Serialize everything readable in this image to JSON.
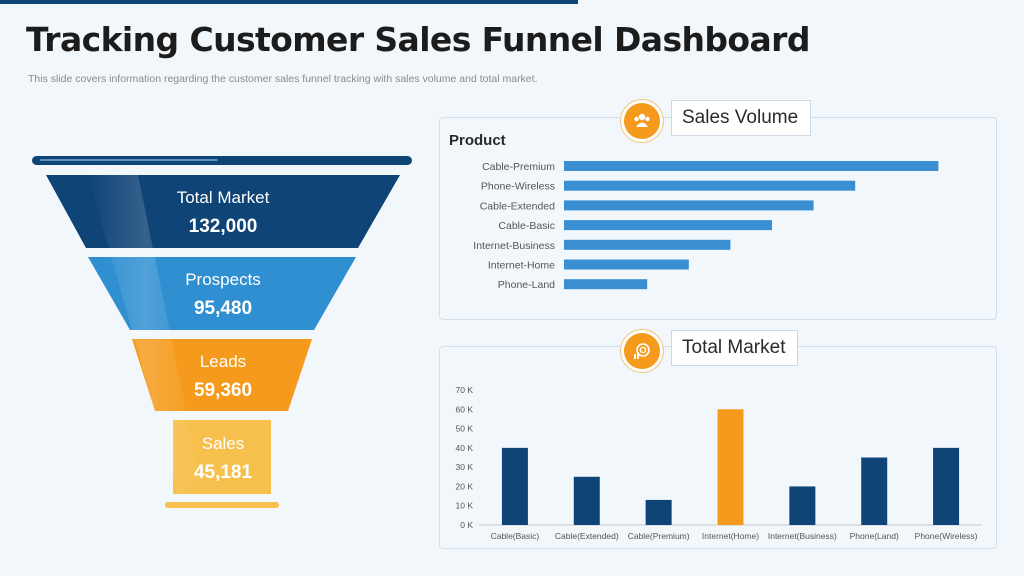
{
  "header": {
    "title": "Tracking Customer Sales Funnel Dashboard",
    "subtitle": "This slide covers information regarding the customer sales funnel tracking with sales volume  and total market."
  },
  "funnel": {
    "stages": [
      {
        "name": "Total Market",
        "value": "132,000",
        "color": "#0f4477"
      },
      {
        "name": "Prospects",
        "value": "95,480",
        "color": "#2f8fd0"
      },
      {
        "name": "Leads",
        "value": "59,360",
        "color": "#f59a1c"
      },
      {
        "name": "Sales",
        "value": "45,181",
        "color": "#f7c04d"
      }
    ]
  },
  "sales_volume": {
    "tag": "Sales Volume",
    "icon": "people-icon"
  },
  "total_market": {
    "tag": "Total Market",
    "icon": "target-chart-icon"
  },
  "chart_data": [
    {
      "type": "bar",
      "orientation": "horizontal",
      "title": "",
      "ylabel": "Product",
      "categories": [
        "Cable-Premium",
        "Phone-Wireless",
        "Cable-Extended",
        "Cable-Basic",
        "Internet-Business",
        "Internet-Home",
        "Phone-Land"
      ],
      "values": [
        90,
        70,
        60,
        50,
        40,
        30,
        20
      ],
      "xlim": [
        0,
        100
      ],
      "color": "#3a8fd2",
      "grid": false,
      "axis_labels_visible": false
    },
    {
      "type": "bar",
      "title": "",
      "categories": [
        "Cable(Basic)",
        "Cable(Extended)",
        "Cable(Premium)",
        "Internet(Home)",
        "Internet(Business)",
        "Phone(Land)",
        "Phone(Wireless)"
      ],
      "values": [
        40000,
        25000,
        13000,
        60000,
        20000,
        35000,
        40000
      ],
      "colors": [
        "#0f4477",
        "#0f4477",
        "#0f4477",
        "#f59a1c",
        "#0f4477",
        "#0f4477",
        "#0f4477"
      ],
      "ylim": [
        0,
        70000
      ],
      "yticks": [
        "0 K",
        "10 K",
        "20 K",
        "30 K",
        "40 K",
        "50 K",
        "60 K",
        "70 K"
      ],
      "grid": false
    }
  ]
}
